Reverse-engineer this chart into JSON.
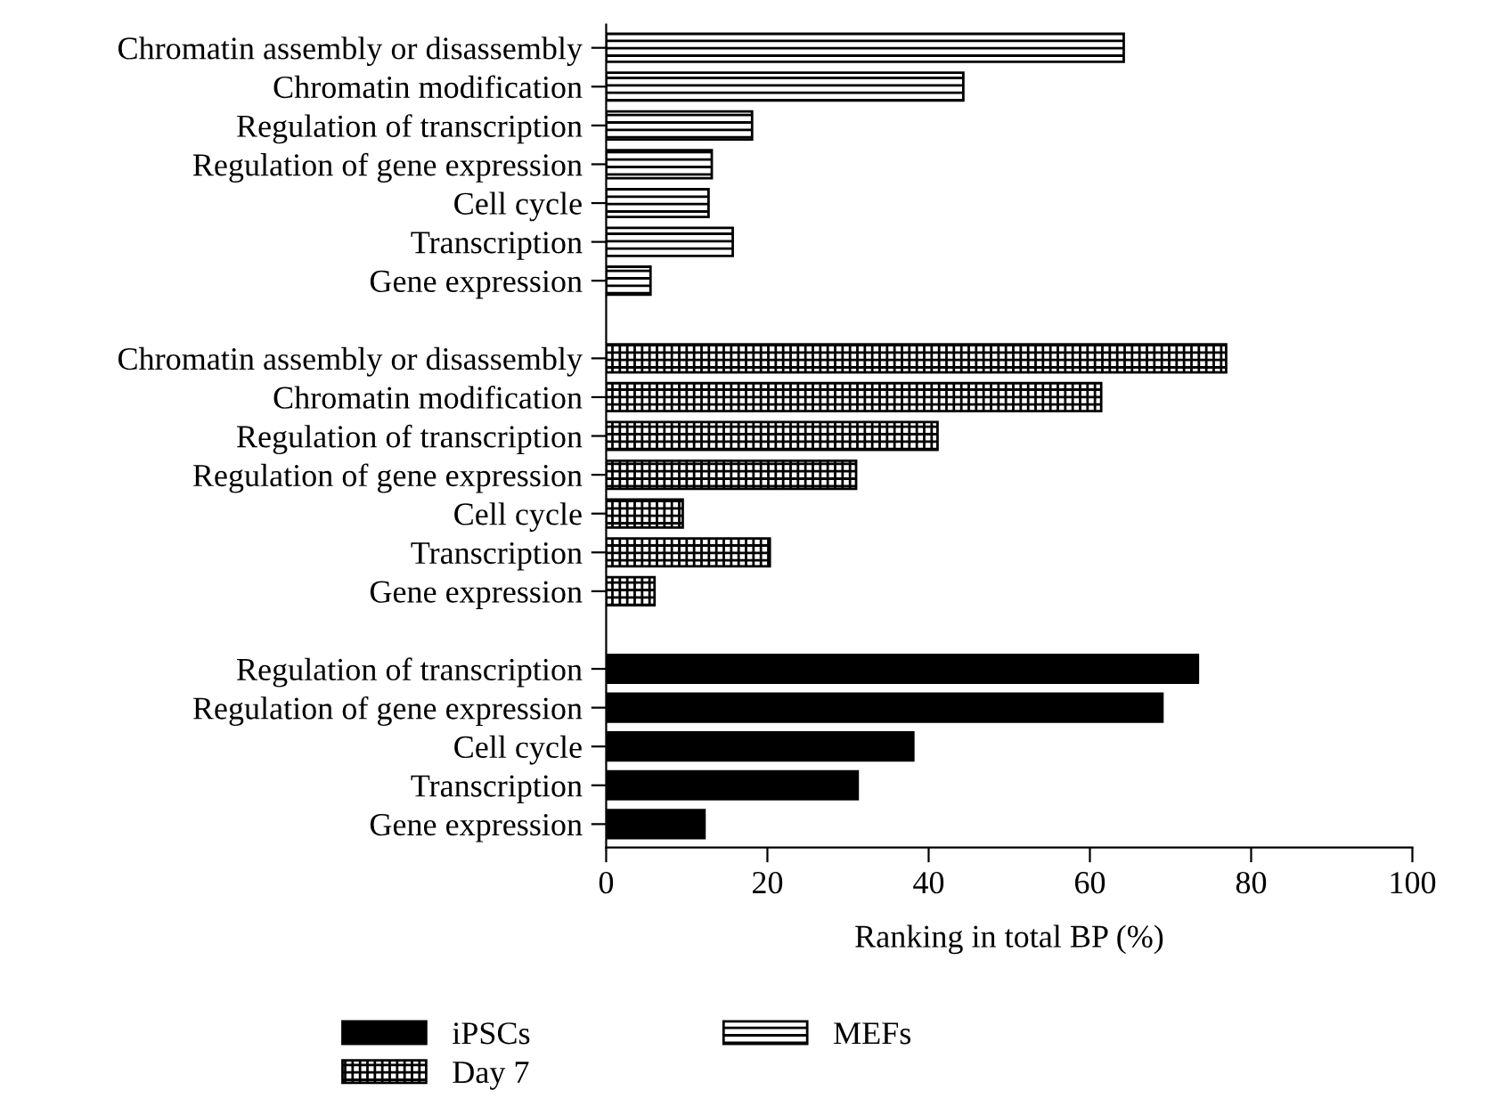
{
  "chart_data": {
    "type": "bar",
    "orientation": "horizontal",
    "xlabel": "Ranking in total BP (%)",
    "categories": [
      "Chromatin assembly or disassembly",
      "Chromatin modification",
      "Regulation of transcription",
      "Regulation of gene expression",
      "Cell cycle",
      "Transcription",
      "Gene expression",
      null,
      "Chromatin assembly or disassembly",
      "Chromatin modification",
      "Regulation of transcription",
      "Regulation of gene expression",
      "Cell cycle",
      "Transcription",
      "Gene expression",
      null,
      "Regulation of transcription",
      "Regulation of gene expression",
      "Cell cycle",
      "Transcription",
      "Gene expression"
    ],
    "series": [
      {
        "name": "iPSCs",
        "color": "#000000",
        "values": [
          null,
          null,
          null,
          null,
          null,
          null,
          null,
          null,
          null,
          null,
          null,
          null,
          null,
          null,
          null,
          null,
          73.4,
          69.0,
          38.1,
          31.2,
          12.2
        ]
      },
      {
        "name": "Day 7",
        "color": "#000000",
        "values": [
          null,
          null,
          null,
          null,
          null,
          null,
          null,
          null,
          76.9,
          61.4,
          41.1,
          31.0,
          9.5,
          20.3,
          6.0,
          null,
          null,
          null,
          null,
          null,
          null
        ]
      },
      {
        "name": "MEFs",
        "color": "#000000",
        "values": [
          64.2,
          44.3,
          18.1,
          13.1,
          12.7,
          15.7,
          5.5,
          null,
          null,
          null,
          null,
          null,
          null,
          null,
          null,
          null,
          null,
          null,
          null,
          null,
          null
        ]
      }
    ],
    "xlim": [
      0,
      100
    ],
    "xticks": [
      0,
      20,
      40,
      60,
      80,
      100
    ],
    "grid": false,
    "legend": "bottom"
  }
}
